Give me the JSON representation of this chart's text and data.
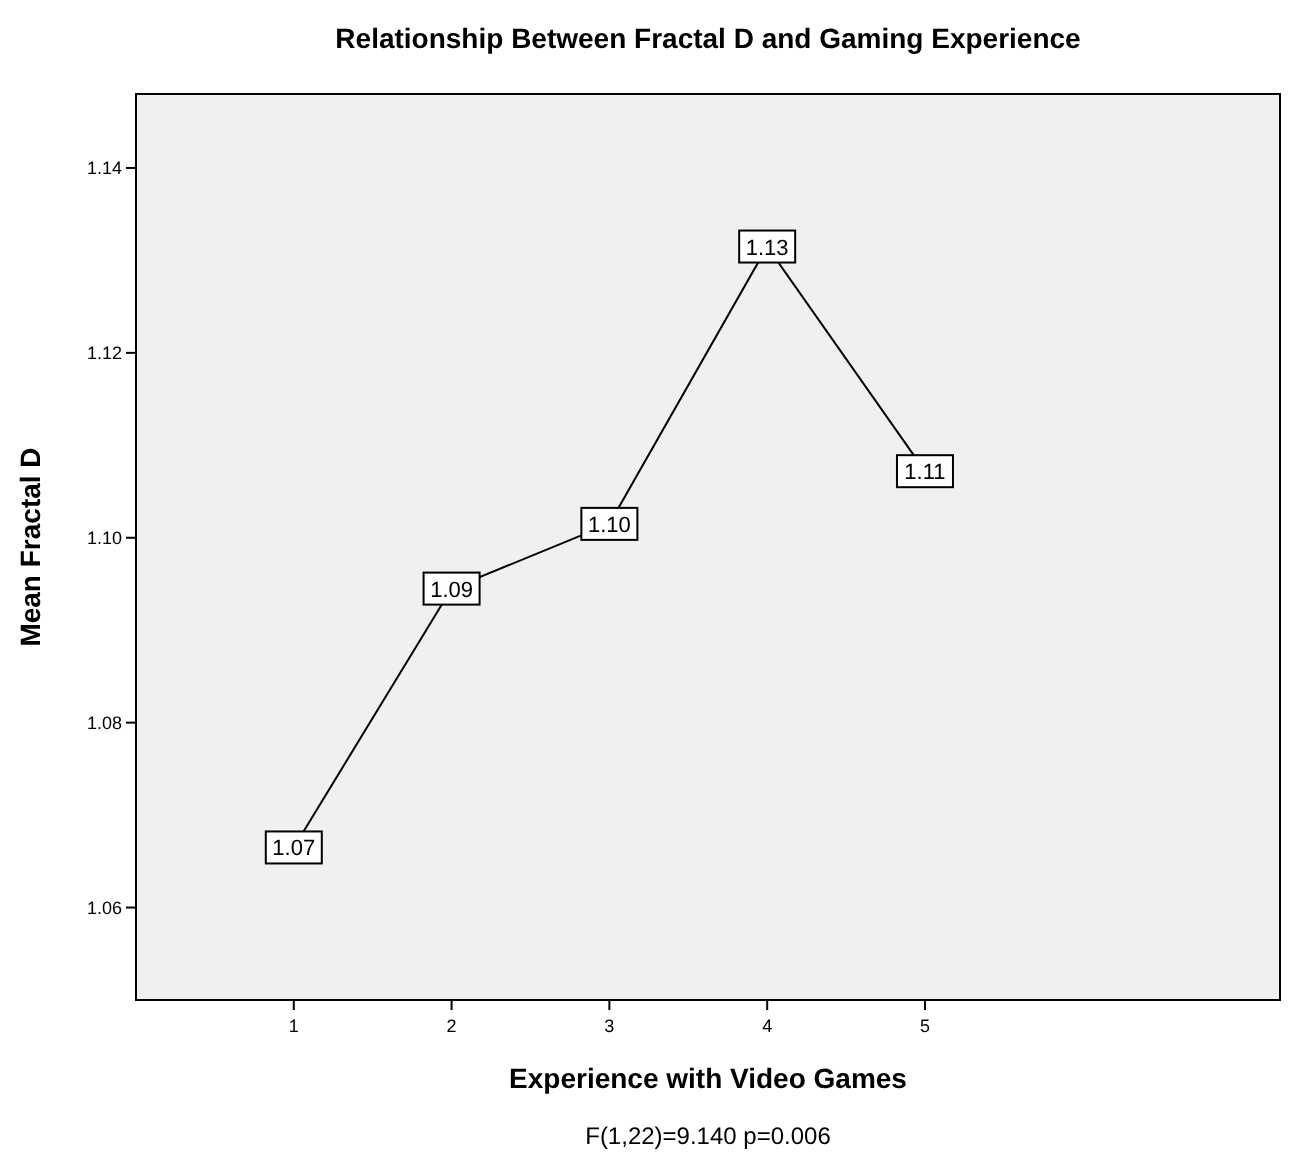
{
  "chart_data": {
    "type": "line",
    "title": "Relationship Between Fractal D and Gaming Experience",
    "xlabel": "Experience with Video Games",
    "ylabel": "Mean Fractal D",
    "x": [
      1,
      2,
      3,
      4,
      5
    ],
    "series": [
      {
        "color": "#000000",
        "values": [
          1.0665,
          1.0945,
          1.1015,
          1.1315,
          1.1072
        ],
        "value_labels": [
          "1.07",
          "1.09",
          "1.10",
          "1.13",
          "1.11"
        ]
      }
    ],
    "xlim": [
      0,
      7.25
    ],
    "xticks": [
      1,
      2,
      3,
      4,
      5
    ],
    "ylim": [
      1.05,
      1.148
    ],
    "yticks": [
      "1.06",
      "1.08",
      "1.10",
      "1.12",
      "1.14"
    ],
    "marker": "square",
    "line_style": "solid",
    "grid": false,
    "annotations": [
      "F(1,22)=9.140 p=0.006"
    ]
  }
}
